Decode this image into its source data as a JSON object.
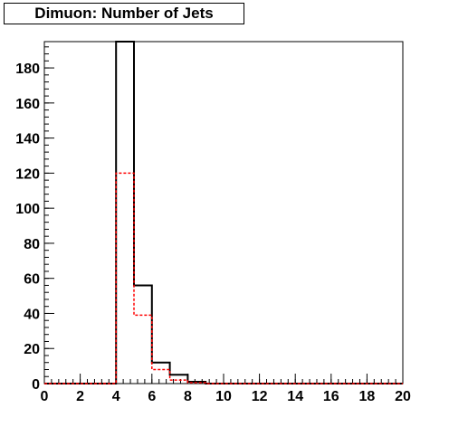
{
  "chart_data": {
    "type": "histogram",
    "title": "Dimuon: Number of Jets",
    "xlabel": "",
    "ylabel": "",
    "xlim": [
      0,
      20
    ],
    "ylim": [
      0,
      195
    ],
    "bin_width": 1,
    "x_ticks": [
      0,
      2,
      4,
      6,
      8,
      10,
      12,
      14,
      16,
      18,
      20
    ],
    "y_ticks": [
      0,
      20,
      40,
      60,
      80,
      100,
      120,
      140,
      160,
      180
    ],
    "bin_edges": [
      0,
      1,
      2,
      3,
      4,
      5,
      6,
      7,
      8,
      9,
      10,
      11,
      12,
      13,
      14,
      15,
      16,
      17,
      18,
      19,
      20
    ],
    "series": [
      {
        "style": "solid",
        "color": "#000000",
        "values": [
          0,
          0,
          0,
          0,
          195,
          56,
          12,
          5,
          1,
          0,
          0,
          0,
          0,
          0,
          0,
          0,
          0,
          0,
          0,
          0
        ]
      },
      {
        "style": "dashed",
        "color": "#ff0000",
        "values": [
          0,
          0,
          0,
          0,
          120,
          39,
          8,
          2,
          0.5,
          0,
          0,
          0,
          0,
          0,
          0,
          0,
          0,
          0,
          0,
          0
        ]
      }
    ],
    "grid": false,
    "legend": "none"
  }
}
